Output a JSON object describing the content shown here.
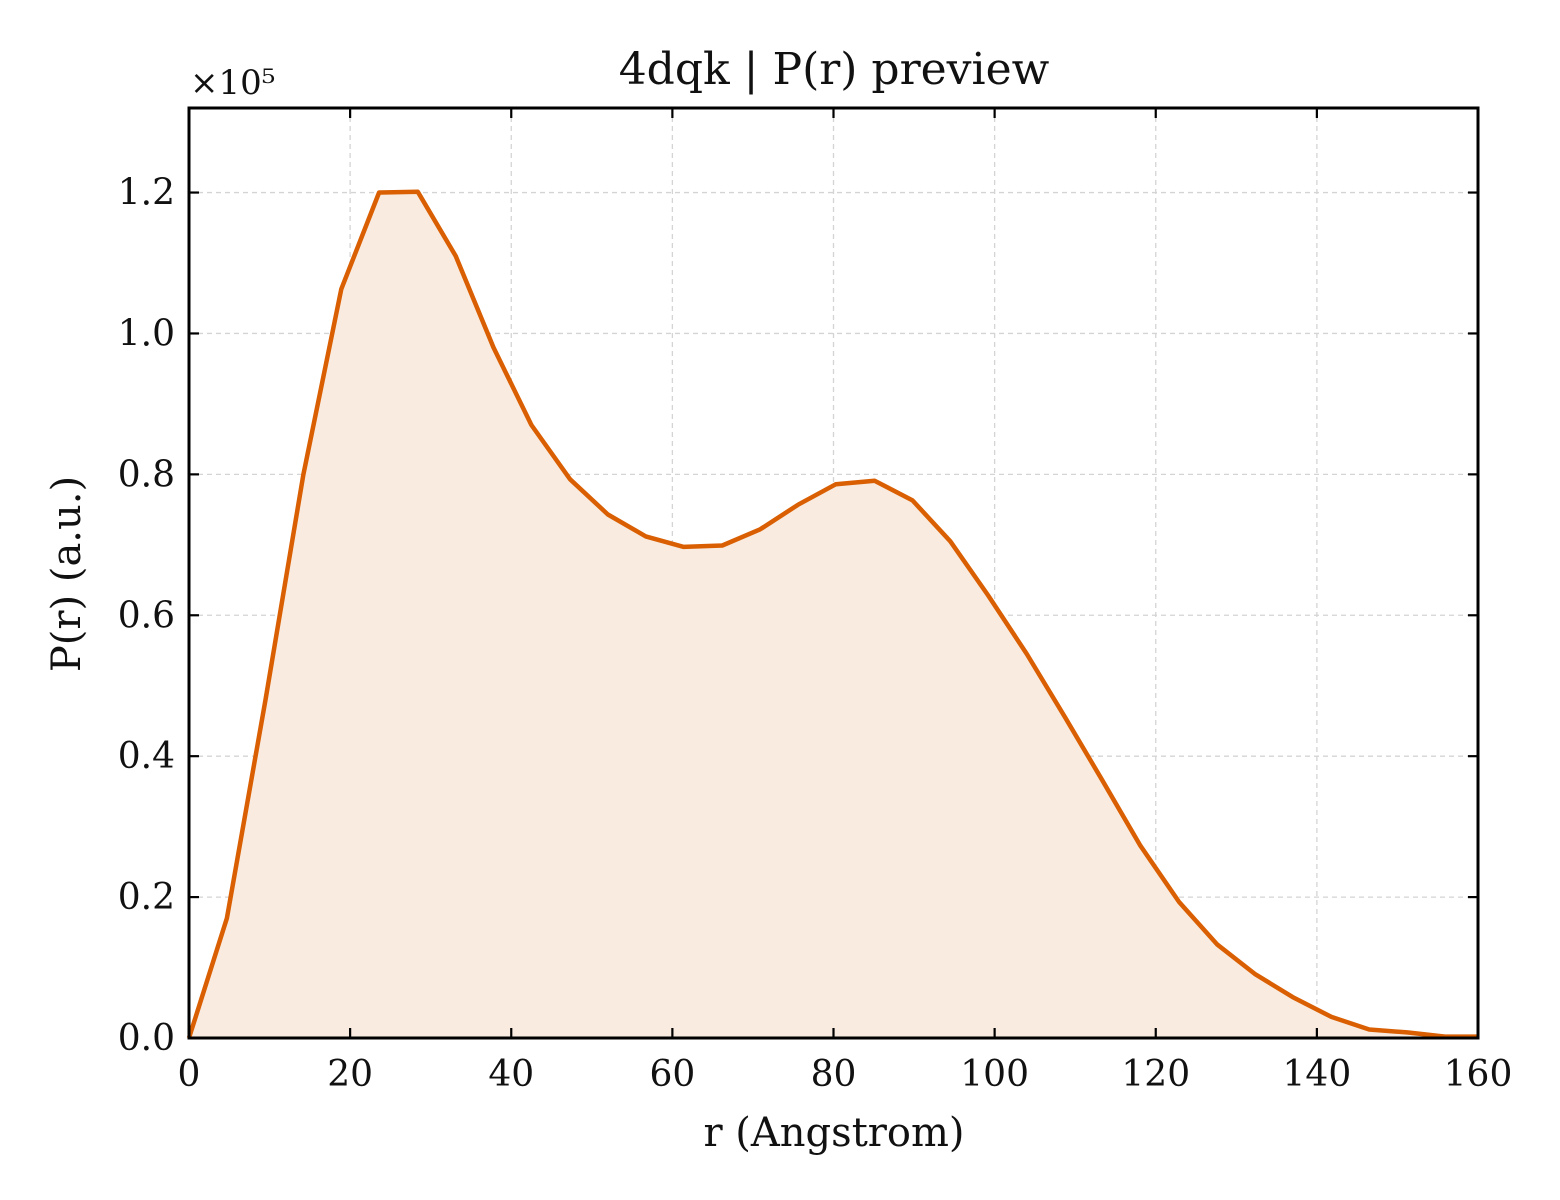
{
  "chart_data": {
    "type": "area",
    "title": "4dqk | P(r) preview",
    "xlabel": "r (Angstrom)",
    "ylabel": "P(r) (a.u.)",
    "y_multiplier_label": "×10⁵",
    "xlim": [
      0,
      160
    ],
    "ylim": [
      0,
      1.32
    ],
    "x_ticks": [
      0,
      20,
      40,
      60,
      80,
      100,
      120,
      140,
      160
    ],
    "x_tick_labels": [
      "0",
      "20",
      "40",
      "60",
      "80",
      "100",
      "120",
      "140",
      "160"
    ],
    "y_ticks": [
      0,
      0.2,
      0.4,
      0.6,
      0.8,
      1.0,
      1.2
    ],
    "y_tick_labels": [
      "0.0",
      "0.2",
      "0.4",
      "0.6",
      "0.8",
      "1.0",
      "1.2"
    ],
    "grid": true,
    "line_color": "#d95f02",
    "fill_color": "#f9ebe0",
    "series": [
      {
        "x": [
          0,
          4.7,
          9.5,
          14.2,
          18.9,
          23.6,
          28.4,
          33.1,
          37.8,
          42.5,
          47.3,
          52.0,
          56.7,
          61.4,
          66.2,
          70.9,
          75.6,
          80.3,
          85.1,
          89.8,
          94.5,
          99.2,
          104.0,
          108.7,
          113.4,
          118.1,
          122.9,
          127.6,
          132.3,
          137.0,
          141.8,
          146.5,
          151.2,
          155.9,
          160
        ],
        "y": [
          0.0,
          0.17,
          0.48,
          0.8,
          1.063,
          1.2,
          1.201,
          1.11,
          0.98,
          0.87,
          0.793,
          0.743,
          0.712,
          0.697,
          0.699,
          0.722,
          0.757,
          0.786,
          0.791,
          0.763,
          0.705,
          0.628,
          0.545,
          0.456,
          0.365,
          0.273,
          0.193,
          0.133,
          0.091,
          0.058,
          0.03,
          0.012,
          0.008,
          0.002,
          0.002
        ]
      }
    ]
  }
}
